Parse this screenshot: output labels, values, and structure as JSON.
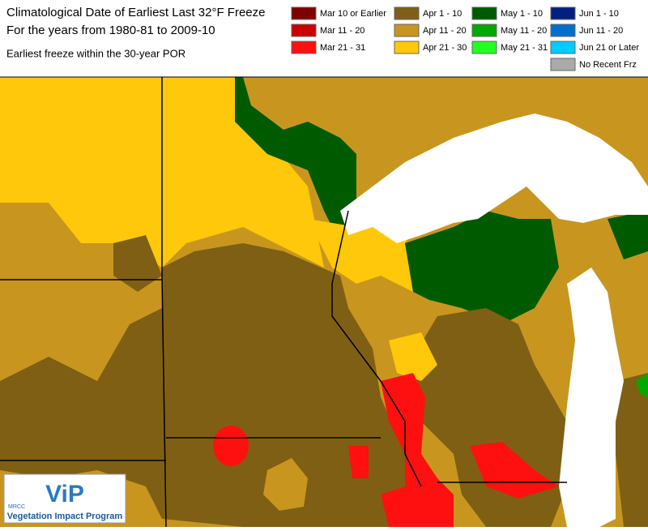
{
  "header": {
    "title": "Climatological Date of Earliest Last 32°F Freeze",
    "subtitle": "For the years from 1980-81 to 2009-10",
    "note": "Earliest freeze within the 30-year POR"
  },
  "legend": [
    {
      "label": "Mar 10 or Earlier",
      "color": "#7f0000"
    },
    {
      "label": "Mar 11 - 20",
      "color": "#cc0000"
    },
    {
      "label": "Mar 21 - 31",
      "color": "#ff1010"
    },
    {
      "label": "Apr 1 - 10",
      "color": "#7f5f14"
    },
    {
      "label": "Apr 11 - 20",
      "color": "#c8961e"
    },
    {
      "label": "Apr 21 - 30",
      "color": "#ffc80a"
    },
    {
      "label": "May 1 - 10",
      "color": "#005a00"
    },
    {
      "label": "May 11 - 20",
      "color": "#00aa00"
    },
    {
      "label": "May 21 - 31",
      "color": "#22ff22"
    },
    {
      "label": "Jun 1 - 10",
      "color": "#001f7f"
    },
    {
      "label": "Jun 11 - 20",
      "color": "#0070d0"
    },
    {
      "label": "Jun 21 or Later",
      "color": "#00ccff"
    },
    {
      "label": "No Recent Frz",
      "color": "#aaaaaa"
    }
  ],
  "logo": {
    "org": "MRCC",
    "brand": "ViP",
    "name": "Vegetation Impact Program"
  }
}
